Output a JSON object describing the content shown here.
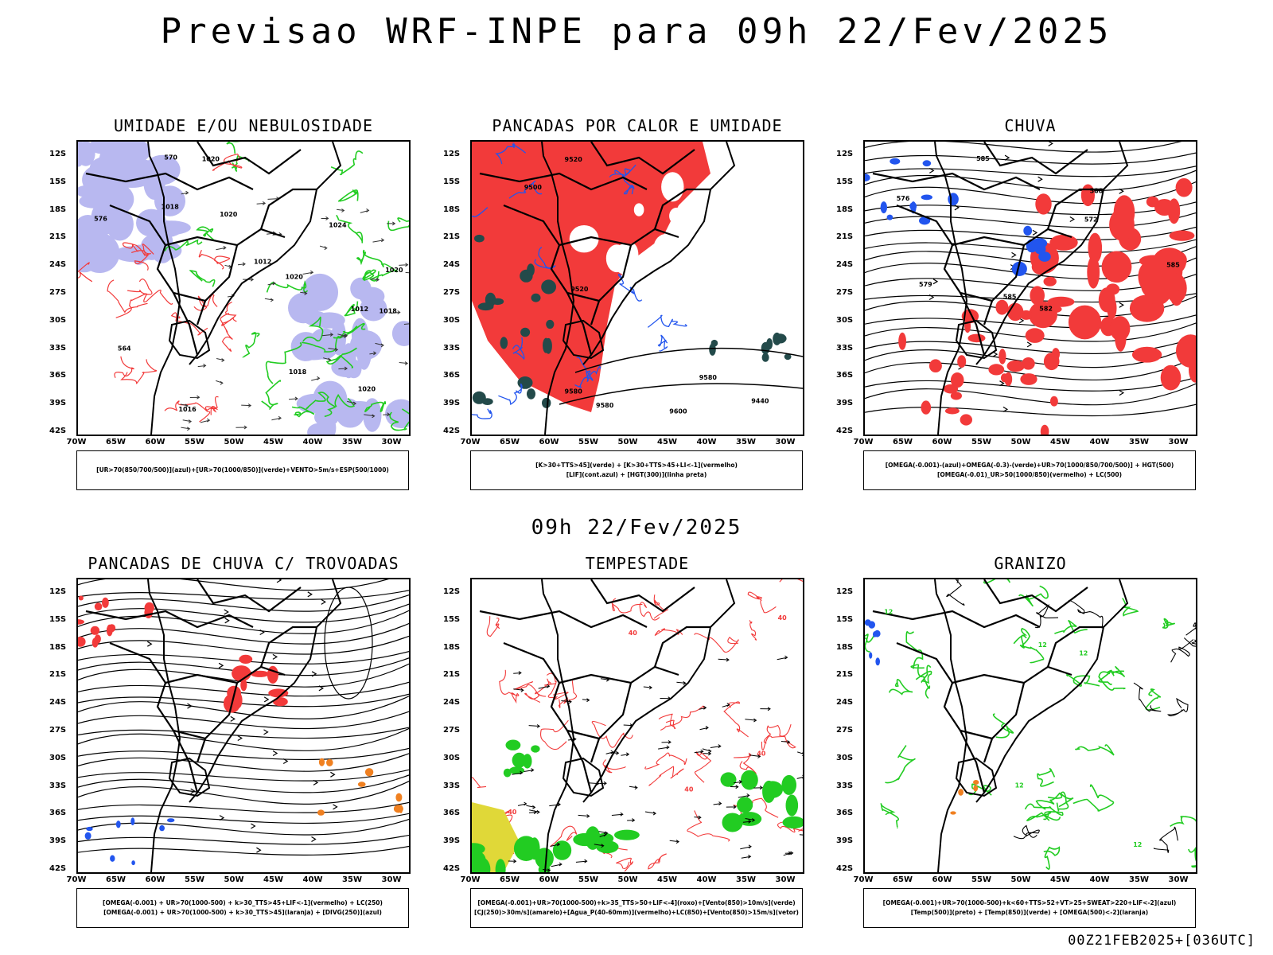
{
  "title": "Previsao WRF-INPE  para 09h 22/Fev/2025",
  "mid_time": "09h 22/Fev/2025",
  "footer": "00Z21FEB2025+[036UTC]",
  "lat_labels": [
    "12S",
    "15S",
    "18S",
    "21S",
    "24S",
    "27S",
    "30S",
    "33S",
    "36S",
    "39S",
    "42S"
  ],
  "lon_labels": [
    "70W",
    "65W",
    "60W",
    "55W",
    "50W",
    "45W",
    "40W",
    "35W",
    "30W"
  ],
  "colors": {
    "red": "#f23a3a",
    "green": "#22cc22",
    "blue": "#2255ee",
    "lavender": "#b8b8f0",
    "darkteal": "#234a4a",
    "yellow": "#e0d838",
    "orange": "#f08020"
  },
  "panels": [
    {
      "title": "UMIDADE E/OU NEBULOSIDADE",
      "legend": [
        "[UR>70(850/700/500)](azul)+[UR>70(1000/850)](verde)+VENTO>5m/s+ESP(500/1000)"
      ],
      "contour_labels": [
        "1018",
        "1018",
        "1024",
        "1020",
        "1018",
        "1016",
        "1012",
        "1020",
        "1020",
        "1020",
        "576",
        "570",
        "564",
        "1012",
        "1020"
      ]
    },
    {
      "title": "PANCADAS POR CALOR E UMIDADE",
      "legend": [
        "[K>30+TTS>45](verde) + [K>30+TTS>45+LI<-1](vermelho)",
        "[LIF](cont.azul) + [HGT(300)](linha preta)"
      ],
      "contour_labels": [
        "9580",
        "9600",
        "9580",
        "9580",
        "9520",
        "9500",
        "9520",
        "9440"
      ]
    },
    {
      "title": "CHUVA",
      "legend": [
        "[OMEGA(-0.001)-(azul)+OMEGA(-0.3)-(verde)+UR>70(1000/850/700/500)] + HGT(500)",
        "[OMEGA(-0.01)_UR>50(1000/850)(vermelho) + LC(500)"
      ],
      "contour_labels": [
        "585",
        "588",
        "585",
        "585",
        "582",
        "579",
        "576",
        "572"
      ]
    },
    {
      "title": "PANCADAS DE CHUVA C/ TROVOADAS",
      "legend": [
        "[OMEGA(-0.001) + UR>70(1000-500) + k>30_TTS>45+LIF<-1](vermelho) + LC(250)",
        "[OMEGA(-0.001) + UR>70(1000-500) + k>30_TTS>45](laranja) + [DIVG(250)](azul)"
      ],
      "contour_labels": []
    },
    {
      "title": "TEMPESTADE",
      "legend": [
        "[OMEGA(-0.001)+UR>70(1000-500)+k>35_TTS>50+LIF<-4](roxo)+[Vento(850)>10m/s](verde)",
        "[CJ(250)>30m/s](amarelo)+[Agua_P(40-60mm)](vermelho)+LC(850)+[Vento(850)>15m/s](vetor)"
      ],
      "contour_labels": [
        "40",
        "40",
        "40",
        "40",
        "40"
      ]
    },
    {
      "title": "GRANIZO",
      "legend": [
        "[OMEGA(-0.001)+UR>70(1000-500)+k<60+TTS>52+VT>25+SWEAT>220+LIF<-2](azul)",
        "[Temp(500)](preto) + [Temp(850)](verde) + [OMEGA(500)<-2](laranja)"
      ],
      "contour_labels": [
        "12",
        "12",
        "12",
        "12",
        "12"
      ]
    }
  ]
}
